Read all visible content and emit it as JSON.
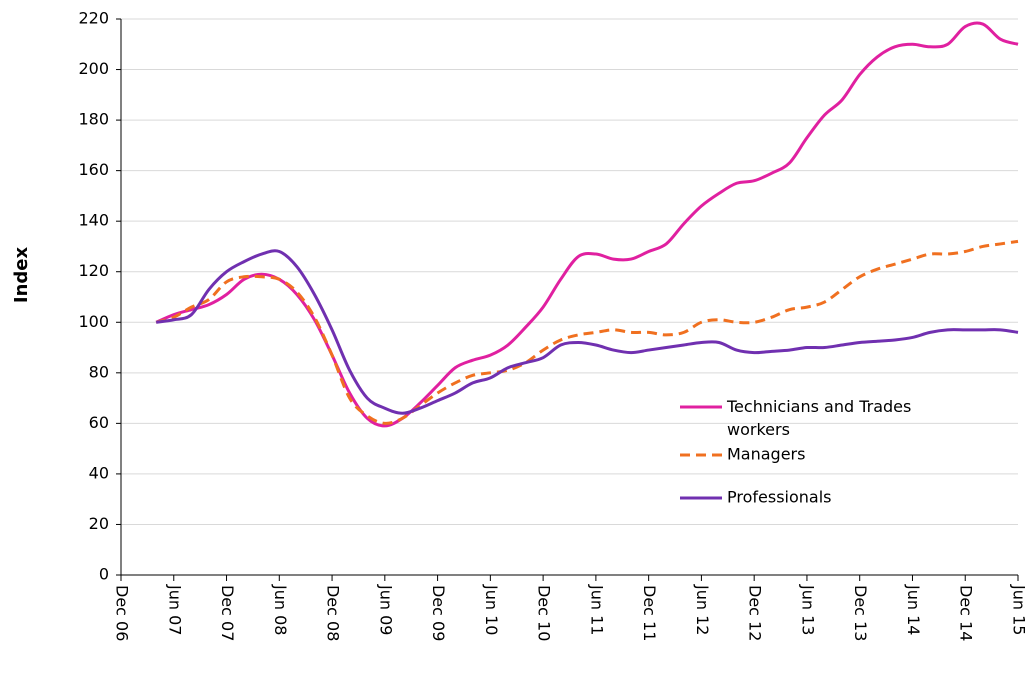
{
  "chart_data": {
    "type": "line",
    "y_label": "Index",
    "categories": [
      "Dec 06",
      null,
      null,
      "Jun 07",
      null,
      null,
      "Dec 07",
      null,
      null,
      "Jun 08",
      null,
      null,
      "Dec 08",
      null,
      null,
      "Jun 09",
      null,
      null,
      "Dec 09",
      null,
      null,
      "Jun 10",
      null,
      null,
      "Dec 10",
      null,
      null,
      "Jun 11",
      null,
      null,
      "Dec 11",
      null,
      null,
      "Jun 12",
      null,
      null,
      "Dec 12",
      null,
      null,
      "Jun 13",
      null,
      null,
      "Dec 13",
      null,
      null,
      "Jun 14",
      null,
      null,
      "Dec 14",
      null,
      null,
      "Jun 15"
    ],
    "series": [
      {
        "name": "Technicians and Trades workers",
        "color": "#e020a0",
        "dash": false,
        "values": [
          null,
          null,
          100,
          103,
          105,
          107,
          111,
          117,
          119,
          117,
          111,
          101,
          87,
          72,
          62,
          59,
          62,
          68,
          75,
          82,
          85,
          87,
          91,
          98,
          106,
          117,
          126,
          127,
          125,
          125,
          128,
          131,
          139,
          146,
          151,
          155,
          156,
          159,
          163,
          173,
          182,
          188,
          198,
          205,
          209,
          210,
          209,
          210,
          217,
          218,
          212,
          210
        ]
      },
      {
        "name": "Managers",
        "color": "#f07020",
        "dash": true,
        "values": [
          null,
          null,
          100,
          102,
          106,
          109,
          116,
          118,
          118,
          117,
          112,
          102,
          87,
          70,
          63,
          60,
          62,
          67,
          72,
          76,
          79,
          80,
          81,
          84,
          89,
          93,
          95,
          96,
          97,
          96,
          96,
          95,
          96,
          100,
          101,
          100,
          100,
          102,
          105,
          106,
          108,
          113,
          118,
          121,
          123,
          125,
          127,
          127,
          128,
          130,
          131,
          132
        ]
      },
      {
        "name": "Professionals",
        "color": "#7030b0",
        "dash": false,
        "values": [
          null,
          null,
          100,
          101,
          103,
          113,
          120,
          124,
          127,
          128,
          122,
          111,
          97,
          81,
          70,
          66,
          64,
          66,
          69,
          72,
          76,
          78,
          82,
          84,
          86,
          91,
          92,
          91,
          89,
          88,
          89,
          90,
          91,
          92,
          92,
          89,
          88,
          88.5,
          89,
          90,
          90,
          91,
          92,
          92.5,
          93,
          94,
          96,
          97,
          97,
          97,
          97,
          96
        ]
      }
    ],
    "ylim": [
      0,
      220
    ],
    "yticks": [
      0,
      20,
      40,
      60,
      80,
      100,
      120,
      140,
      160,
      180,
      200,
      220
    ],
    "grid": true
  }
}
